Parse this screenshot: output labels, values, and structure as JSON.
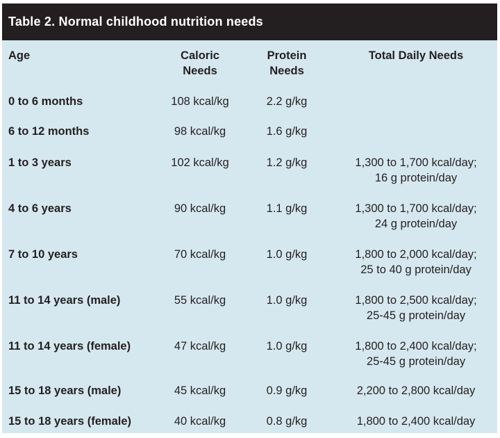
{
  "title": "Table 2. Normal childhood nutrition needs",
  "headers": {
    "age": "Age",
    "caloric_1": "Caloric",
    "caloric_2": "Needs",
    "protein_1": "Protein",
    "protein_2": "Needs",
    "total": "Total Daily Needs"
  },
  "rows": [
    {
      "age": "0 to 6 months",
      "caloric": "108 kcal/kg",
      "protein": "2.2 g/kg",
      "total_1": "",
      "total_2": ""
    },
    {
      "age": "6 to 12 months",
      "caloric": "98 kcal/kg",
      "protein": "1.6 g/kg",
      "total_1": "",
      "total_2": ""
    },
    {
      "age": "1 to 3 years",
      "caloric": "102 kcal/kg",
      "protein": "1.2 g/kg",
      "total_1": "1,300 to 1,700 kcal/day;",
      "total_2": "16 g protein/day"
    },
    {
      "age": "4 to 6 years",
      "caloric": "90 kcal/kg",
      "protein": "1.1 g/kg",
      "total_1": "1,300 to 1,700 kcal/day;",
      "total_2": "24 g protein/day"
    },
    {
      "age": "7 to 10 years",
      "caloric": "70 kcal/kg",
      "protein": "1.0 g/kg",
      "total_1": "1,800 to 2,000 kcal/day;",
      "total_2": "25 to 40 g protein/day"
    },
    {
      "age": "11 to 14 years (male)",
      "caloric": "55 kcal/kg",
      "protein": "1.0 g/kg",
      "total_1": "1,800 to 2,500 kcal/day;",
      "total_2": "25-45 g protein/day"
    },
    {
      "age": "11 to 14 years (female)",
      "caloric": "47 kcal/kg",
      "protein": "1.0 g/kg",
      "total_1": "1,800 to 2,400 kcal/day;",
      "total_2": "25-45 g protein/day"
    },
    {
      "age": "15 to 18 years (male)",
      "caloric": "45 kcal/kg",
      "protein": "0.9 g/kg",
      "total_1": "2,200 to 2,800 kcal/day",
      "total_2": ""
    },
    {
      "age": "15 to 18 years (female)",
      "caloric": "40 kcal/kg",
      "protein": "0.8 g/kg",
      "total_1": "1,800 to 2,400 kcal/day",
      "total_2": ""
    }
  ],
  "colors": {
    "title_background": "#231f20",
    "table_background": "#d6e8ef",
    "text": "#231f20"
  }
}
